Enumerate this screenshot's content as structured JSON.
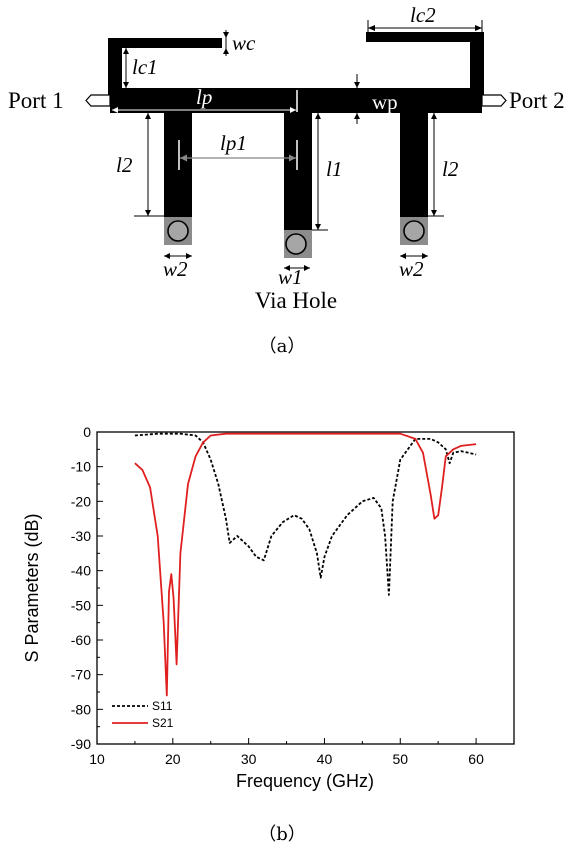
{
  "panel_a": {
    "port1": "Port 1",
    "port2": "Port 2",
    "via": "Via Hole",
    "labels": {
      "wc": "wc",
      "lc1": "lc1",
      "lc2": "lc2",
      "lp": "lp",
      "wp": "wp",
      "lp1": "lp1",
      "l1": "l1",
      "l2_left": "l2",
      "l2_right": "l2",
      "w1": "w1",
      "w2_left": "w2",
      "w2_right": "w2"
    },
    "caption": "（a）"
  },
  "panel_b": {
    "caption": "（b）"
  },
  "chart_data": {
    "type": "line",
    "title": "",
    "xlabel": "Frequency (GHz)",
    "ylabel": "S Parameters (dB)",
    "xlim": [
      10,
      65
    ],
    "ylim": [
      -90,
      0
    ],
    "xticks": [
      10,
      20,
      30,
      40,
      50,
      60
    ],
    "yticks": [
      0,
      -10,
      -20,
      -30,
      -40,
      -50,
      -60,
      -70,
      -80,
      -90
    ],
    "grid": false,
    "legend_position": "bottom-left",
    "series": [
      {
        "name": "S11",
        "color": "#000000",
        "style": "dashed",
        "x": [
          15,
          18,
          21,
          23,
          24,
          25,
          26,
          27,
          27.5,
          28.5,
          30,
          31,
          32,
          33,
          34.5,
          36,
          37,
          38,
          39,
          39.5,
          40,
          41,
          43,
          45,
          46.5,
          47.5,
          48,
          48.5,
          49,
          50,
          52,
          54,
          55,
          56,
          56.5,
          57,
          58,
          60
        ],
        "y": [
          -1,
          -0.5,
          -0.5,
          -1,
          -3,
          -8,
          -15,
          -25,
          -32,
          -30,
          -33,
          -36,
          -37,
          -30,
          -26,
          -24,
          -25,
          -28,
          -35,
          -42,
          -36,
          -30,
          -24,
          -20,
          -19,
          -22,
          -30,
          -47,
          -20,
          -8,
          -2,
          -2,
          -3,
          -5,
          -9,
          -6,
          -5.5,
          -6.5
        ]
      },
      {
        "name": "S21",
        "color": "#e02020",
        "style": "solid",
        "x": [
          15,
          16,
          17,
          18,
          18.8,
          19.2,
          19.5,
          19.8,
          20.1,
          20.5,
          21,
          22,
          23,
          24,
          25,
          27,
          30,
          35,
          40,
          45,
          48,
          50,
          52,
          53,
          54,
          54.5,
          55,
          55.5,
          56,
          57,
          58,
          60
        ],
        "y": [
          -9,
          -11,
          -16,
          -30,
          -55,
          -76,
          -46,
          -41,
          -48,
          -67,
          -35,
          -15,
          -7,
          -3,
          -1,
          -0.5,
          -0.5,
          -0.5,
          -0.5,
          -0.5,
          -0.5,
          -0.5,
          -2,
          -6,
          -18,
          -25,
          -24,
          -16,
          -7,
          -5,
          -4,
          -3.5
        ]
      }
    ]
  }
}
